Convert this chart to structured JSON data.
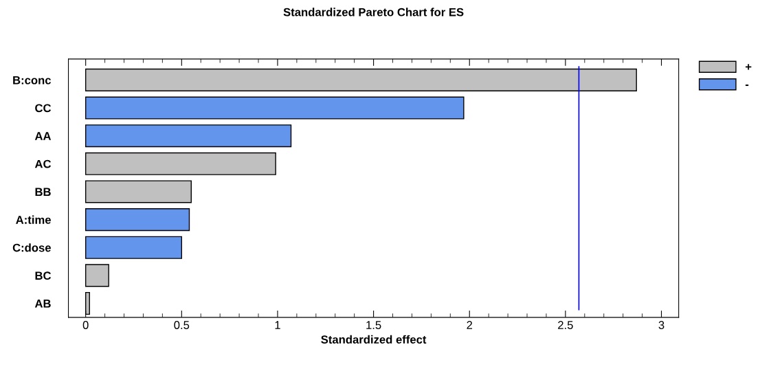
{
  "chart_data": {
    "type": "bar",
    "orientation": "horizontal",
    "title": "Standardized Pareto Chart for ES",
    "xlabel": "Standardized effect",
    "categories": [
      "B:conc",
      "CC",
      "AA",
      "AC",
      "BB",
      "A:time",
      "C:dose",
      "BC",
      "AB"
    ],
    "series": [
      {
        "name": "+",
        "color": "#c0c0c0",
        "values": [
          2.87,
          null,
          null,
          0.99,
          0.55,
          null,
          null,
          0.12,
          0.02
        ]
      },
      {
        "name": "-",
        "color": "#6495ed",
        "values": [
          null,
          1.97,
          1.07,
          null,
          null,
          0.54,
          0.5,
          null,
          null
        ]
      }
    ],
    "xlim": [
      -0.09,
      3.09
    ],
    "xticks": [
      0,
      0.5,
      1,
      1.5,
      2,
      2.5,
      3
    ],
    "ref_lines": [
      {
        "axis": "x",
        "value": 2.57,
        "color": "#0000ff"
      }
    ],
    "grid": false,
    "legend": "right"
  }
}
